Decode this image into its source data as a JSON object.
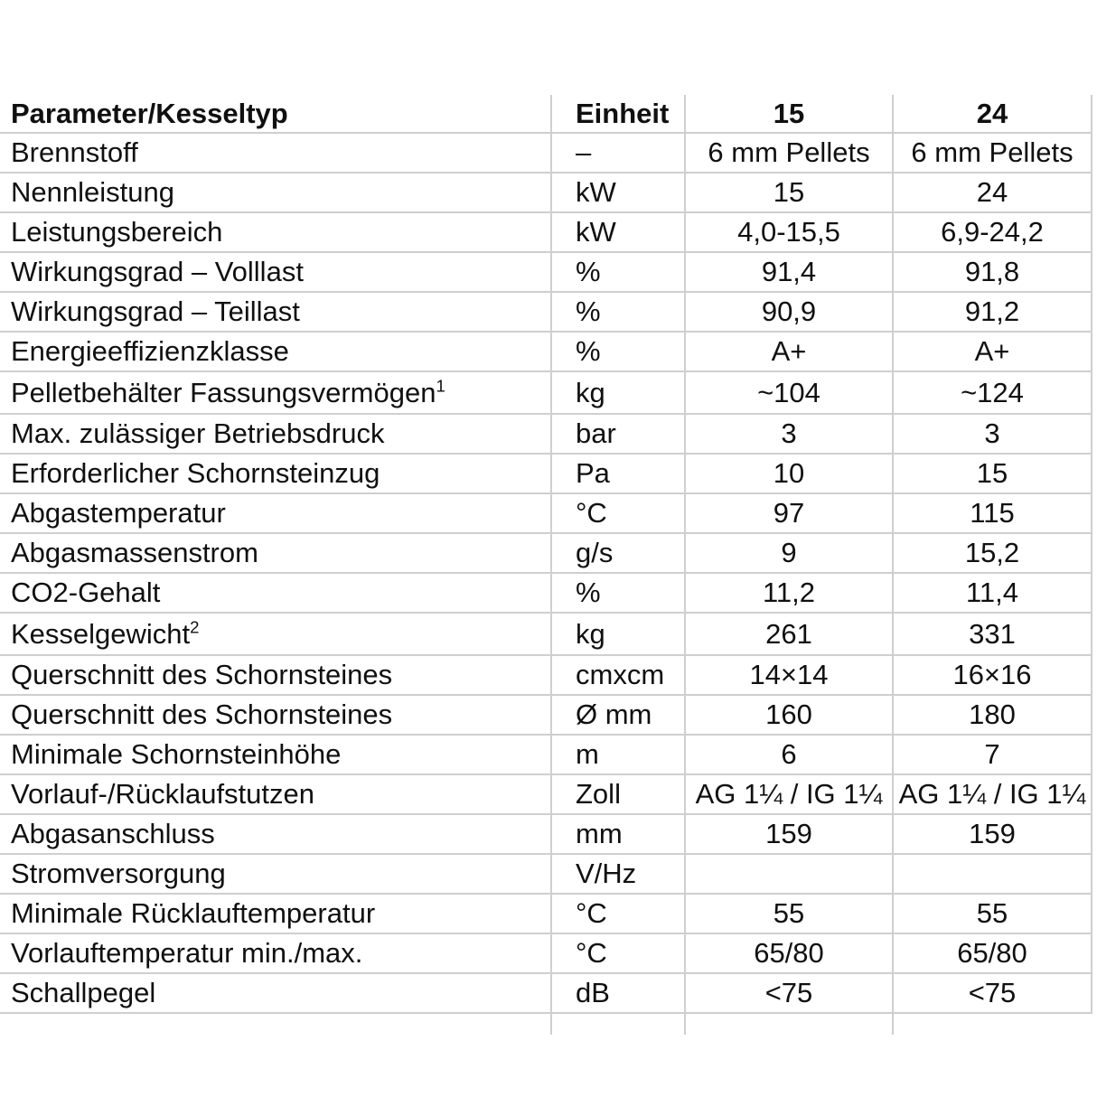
{
  "colors": {
    "background": "#ffffff",
    "grid_line": "#cfcfcf",
    "text": "#101010"
  },
  "table": {
    "columns": [
      "Parameter/Kesseltyp",
      "Einheit",
      "15",
      "24"
    ],
    "rows": [
      {
        "param": "Brennstoff",
        "unit": "–",
        "v15": "6 mm Pellets",
        "v24": "6 mm Pellets"
      },
      {
        "param": "Nennleistung",
        "unit": "kW",
        "v15": "15",
        "v24": "24"
      },
      {
        "param": "Leistungsbereich",
        "unit": "kW",
        "v15": "4,0-15,5",
        "v24": "6,9-24,2"
      },
      {
        "param": "Wirkungsgrad – Volllast",
        "unit": "%",
        "v15": "91,4",
        "v24": "91,8"
      },
      {
        "param": "Wirkungsgrad – Teillast",
        "unit": "%",
        "v15": "90,9",
        "v24": "91,2"
      },
      {
        "param": "Energieeffizienzklasse",
        "unit": "%",
        "v15": "A+",
        "v24": "A+"
      },
      {
        "param": "Pelletbehälter Fassungsvermögen",
        "sup": "1",
        "unit": "kg",
        "v15": "~104",
        "v24": "~124"
      },
      {
        "param": "Max. zulässiger Betriebsdruck",
        "unit": "bar",
        "v15": "3",
        "v24": "3"
      },
      {
        "param": "Erforderlicher Schornsteinzug",
        "unit": "Pa",
        "v15": "10",
        "v24": "15"
      },
      {
        "param": "Abgastemperatur",
        "unit": "°C",
        "v15": "97",
        "v24": "115"
      },
      {
        "param": "Abgasmassenstrom",
        "unit": "g/s",
        "v15": "9",
        "v24": "15,2"
      },
      {
        "param": "CO2-Gehalt",
        "unit": "%",
        "v15": "11,2",
        "v24": "11,4"
      },
      {
        "param": "Kesselgewicht",
        "sup": "2",
        "unit": "kg",
        "v15": "261",
        "v24": "331"
      },
      {
        "param": "Querschnitt des Schornsteines",
        "unit": "cmxcm",
        "v15": "14×14",
        "v24": "16×16"
      },
      {
        "param": "Querschnitt des Schornsteines",
        "unit": "Ø mm",
        "v15": "160",
        "v24": "180"
      },
      {
        "param": "Minimale Schornsteinhöhe",
        "unit": "m",
        "v15": "6",
        "v24": "7"
      },
      {
        "param": "Vorlauf-/Rücklaufstutzen",
        "unit": "Zoll",
        "v15": "AG 1¼ / IG 1¼",
        "v24": "AG 1¼ / IG 1¼"
      },
      {
        "param": "Abgasanschluss",
        "unit": "mm",
        "v15": "159",
        "v24": "159"
      },
      {
        "param": "Stromversorgung",
        "unit": "V/Hz",
        "v15": "",
        "v24": ""
      },
      {
        "param": "Minimale Rücklauftemperatur",
        "unit": "°C",
        "v15": "55",
        "v24": "55"
      },
      {
        "param": "Vorlauftemperatur min./max.",
        "unit": "°C",
        "v15": "65/80",
        "v24": "65/80"
      },
      {
        "param": "Schallpegel",
        "unit": "dB",
        "v15": "<75",
        "v24": "<75"
      }
    ]
  }
}
